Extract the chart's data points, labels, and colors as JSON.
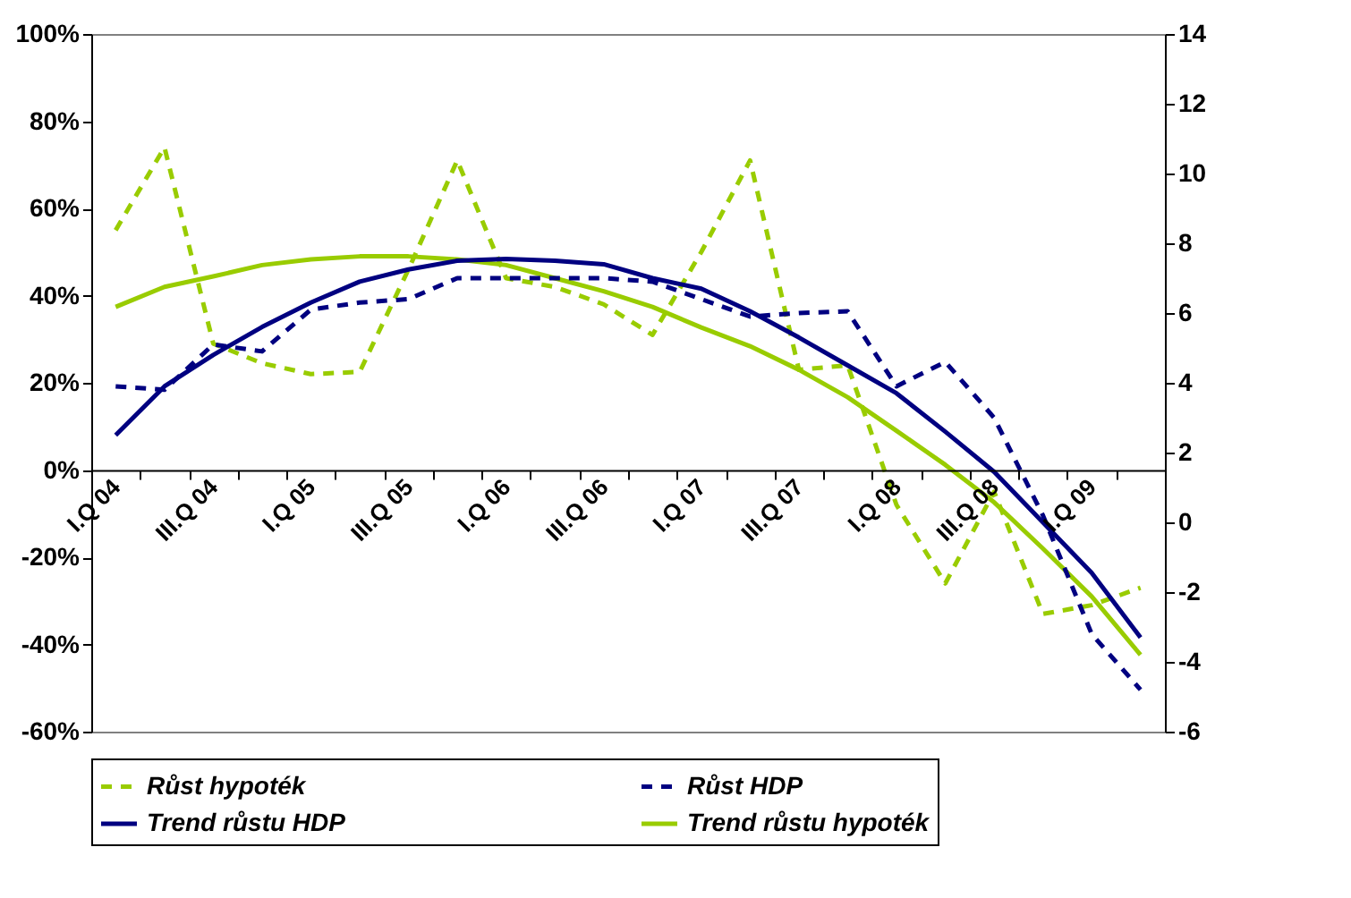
{
  "chart_data": {
    "type": "line",
    "categories": [
      "I.Q 04",
      null,
      "III.Q 04",
      null,
      "I.Q 05",
      null,
      "III.Q 05",
      null,
      "I.Q 06",
      null,
      "III.Q 06",
      null,
      "I.Q 07",
      null,
      "III.Q 07",
      null,
      "I.Q 08",
      null,
      "III.Q 08",
      null,
      "I.Q 09",
      null
    ],
    "series": [
      {
        "name": "Růst hypoték",
        "color": "#99cc00",
        "line_style": "dashed",
        "values": [
          55,
          74,
          29,
          24.5,
          22,
          22.5,
          46,
          71,
          44,
          42,
          38,
          31,
          50,
          71,
          23,
          24,
          -8,
          -26,
          -5,
          -33,
          -31,
          -27
        ]
      },
      {
        "name": "Růst HDP",
        "color": "#000080",
        "line_style": "dashed",
        "axis": "y2",
        "values": [
          3.9,
          3.8,
          5.1,
          4.9,
          6.1,
          6.3,
          6.4,
          7.0,
          7.0,
          7.0,
          7.0,
          6.9,
          6.4,
          5.9,
          6.0,
          6.05,
          3.9,
          4.6,
          3.0,
          0.2,
          -3.2,
          -4.8
        ]
      },
      {
        "name": "Trend růstu HDP",
        "color": "#000080",
        "line_style": "solid",
        "axis": "y2",
        "values": [
          2.5,
          3.9,
          4.8,
          5.6,
          6.3,
          6.9,
          7.25,
          7.5,
          7.55,
          7.5,
          7.4,
          7.0,
          6.7,
          6.05,
          5.3,
          4.5,
          3.7,
          2.6,
          1.45,
          0,
          -1.45,
          -3.3
        ]
      },
      {
        "name": "Trend růstu hypoték",
        "color": "#99cc00",
        "line_style": "solid",
        "values": [
          37.4,
          42,
          44.4,
          47,
          48.3,
          49,
          49,
          48.3,
          47,
          44,
          41,
          37.4,
          32.7,
          28.4,
          23,
          16.7,
          9,
          1.2,
          -7.4,
          -18,
          -29,
          -42.4
        ]
      }
    ],
    "ylim": [
      -60,
      100
    ],
    "yticks": [
      {
        "value": -60,
        "label": "-60%"
      },
      {
        "value": -40,
        "label": "-40%"
      },
      {
        "value": -20,
        "label": "-20%"
      },
      {
        "value": 0,
        "label": "0%"
      },
      {
        "value": 20,
        "label": "20%"
      },
      {
        "value": 40,
        "label": "40%"
      },
      {
        "value": 60,
        "label": "60%"
      },
      {
        "value": 80,
        "label": "80%"
      },
      {
        "value": 100,
        "label": "100%"
      }
    ],
    "y2lim": [
      -6,
      14
    ],
    "y2ticks": [
      -6,
      -4,
      -2,
      0,
      2,
      4,
      6,
      8,
      10,
      12,
      14
    ],
    "grid": false,
    "legend": "bottom"
  }
}
